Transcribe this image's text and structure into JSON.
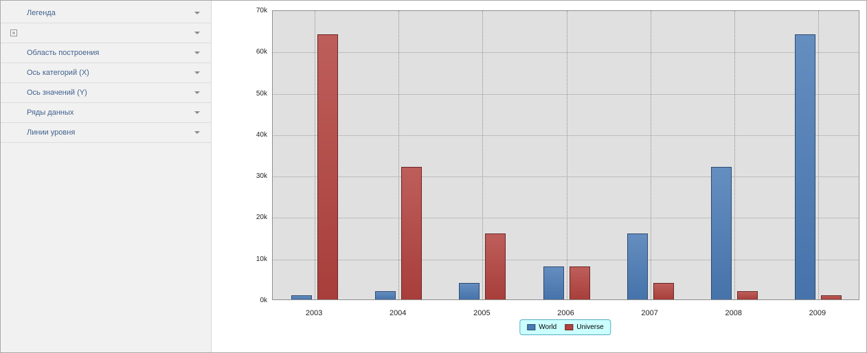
{
  "sidebar": {
    "items": [
      {
        "key": "legend",
        "label": "Легенда",
        "has_checkbox": false
      },
      {
        "key": "chart",
        "label": "",
        "has_checkbox": true
      },
      {
        "key": "plot-area",
        "label": "Область построения",
        "has_checkbox": false
      },
      {
        "key": "x-axis",
        "label": "Ось категорий (X)",
        "has_checkbox": false
      },
      {
        "key": "y-axis",
        "label": "Ось значений (Y)",
        "has_checkbox": false
      },
      {
        "key": "data-series",
        "label": "Ряды данных",
        "has_checkbox": false
      },
      {
        "key": "constant-lines",
        "label": "Линии уровня",
        "has_checkbox": false
      }
    ],
    "chevron_icon": "chevron-down",
    "checkbox_icon": "checkbox"
  },
  "chart_data": {
    "type": "bar",
    "title": "",
    "xlabel": "",
    "ylabel": "",
    "categories": [
      "2003",
      "2004",
      "2005",
      "2006",
      "2007",
      "2008",
      "2009"
    ],
    "series": [
      {
        "name": "World",
        "color": "#4a7ab5",
        "border_color": "#2c4a70",
        "values": [
          1000,
          2000,
          4000,
          8000,
          16000,
          32000,
          64000
        ]
      },
      {
        "name": "Universe",
        "color": "#b2423e",
        "border_color": "#6b2523",
        "values": [
          64000,
          32000,
          16000,
          8000,
          4000,
          2000,
          1000
        ]
      }
    ],
    "ylim": [
      0,
      70000
    ],
    "ytick_step": 10000,
    "ytick_labels": [
      "0k",
      "10k",
      "20k",
      "30k",
      "40k",
      "50k",
      "60k",
      "70k"
    ],
    "grid": true,
    "plot_background": "#e0e0e0",
    "legend": {
      "position": "bottom-center",
      "entries": [
        "World",
        "Universe"
      ],
      "background": "#ccffff",
      "border_color": "#54aec6"
    }
  }
}
